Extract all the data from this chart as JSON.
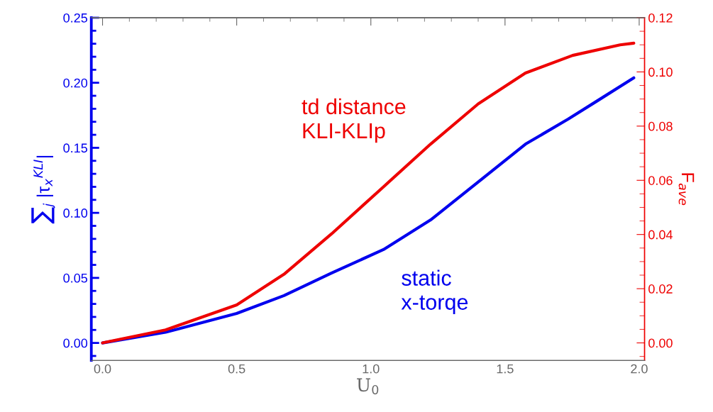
{
  "chart_data": {
    "type": "line",
    "xlabel": "U$_{0}$",
    "ylabel": "∑$_{j}$ |τ$_{x}$$^{KLI}$|",
    "y2label": "F$_{ave}$",
    "xlim": [
      -0.042,
      2.02
    ],
    "xticks": [
      {
        "value": 0,
        "label": "0.0"
      },
      0.5,
      {
        "value": 1,
        "label": "1.0"
      },
      1.5,
      {
        "value": 2,
        "label": "2.0"
      }
    ],
    "ylim": [
      -0.0135,
      0.25
    ],
    "yticks": [
      {
        "value": 0,
        "label": "0.00"
      },
      0.05,
      {
        "value": 0.1,
        "label": "0.10"
      },
      0.15,
      {
        "value": 0.2,
        "label": "0.20"
      },
      0.25
    ],
    "y2lim": [
      -0.0065,
      0.12
    ],
    "y2ticks": [
      {
        "value": 0,
        "label": "0.00"
      },
      0.02,
      0.04,
      0.06,
      0.08,
      {
        "value": 0.1,
        "label": "0.10"
      },
      0.12
    ],
    "grid": false,
    "legend": false,
    "marker": "none",
    "line_style": "solid",
    "series": [
      {
        "name": "static\nx-torqe",
        "color": "#0000ee",
        "x": [
          0,
          0.235,
          0.5,
          0.676,
          0.853,
          1.047,
          1.223,
          1.4,
          1.576,
          1.735,
          1.84,
          1.98
        ],
        "values": [
          0,
          0.0082,
          0.0227,
          0.0364,
          0.0537,
          0.0718,
          0.0946,
          0.1237,
          0.1528,
          0.172,
          0.1856,
          0.2038
        ]
      },
      {
        "name": "td distance\nKLI-KLIp",
        "color": "#ee0000",
        "axis": "y2",
        "x": [
          0,
          0.235,
          0.5,
          0.676,
          0.853,
          1.047,
          1.223,
          1.4,
          1.576,
          1.752,
          1.929,
          1.98
        ],
        "values": [
          0,
          0.0048,
          0.014,
          0.0253,
          0.0402,
          0.0576,
          0.0734,
          0.0882,
          0.0996,
          0.1061,
          0.11,
          0.1106
        ]
      }
    ]
  }
}
